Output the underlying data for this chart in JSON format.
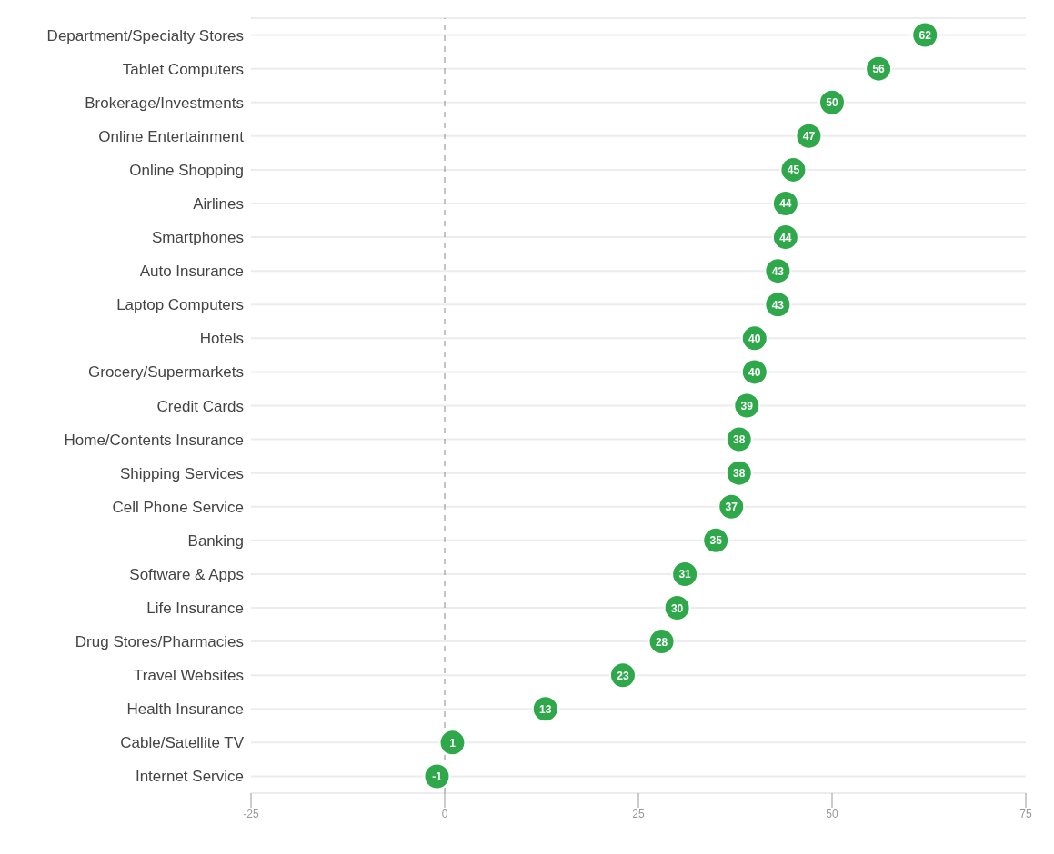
{
  "chart_data": {
    "type": "scatter",
    "orientation": "horizontal",
    "categories": [
      "Department/Specialty Stores",
      "Tablet Computers",
      "Brokerage/Investments",
      "Online Entertainment",
      "Online Shopping",
      "Airlines",
      "Smartphones",
      "Auto Insurance",
      "Laptop Computers",
      "Hotels",
      "Grocery/Supermarkets",
      "Credit Cards",
      "Home/Contents Insurance",
      "Shipping Services",
      "Cell Phone Service",
      "Banking",
      "Software & Apps",
      "Life Insurance",
      "Drug Stores/Pharmacies",
      "Travel Websites",
      "Health Insurance",
      "Cable/Satellite TV",
      "Internet Service"
    ],
    "values": [
      62,
      56,
      50,
      47,
      45,
      44,
      44,
      43,
      43,
      40,
      40,
      39,
      38,
      38,
      37,
      35,
      31,
      30,
      28,
      23,
      13,
      1,
      -1
    ],
    "color": "#2ea84a",
    "xlim": [
      -25,
      75
    ],
    "xticks": [
      -25,
      0,
      25,
      50,
      75
    ],
    "grid": "y",
    "data_labels": true,
    "marker": "circle",
    "ref_lines": [
      {
        "axis": "x",
        "value": 0,
        "line_style": "dashed",
        "color": "#888888"
      }
    ]
  }
}
